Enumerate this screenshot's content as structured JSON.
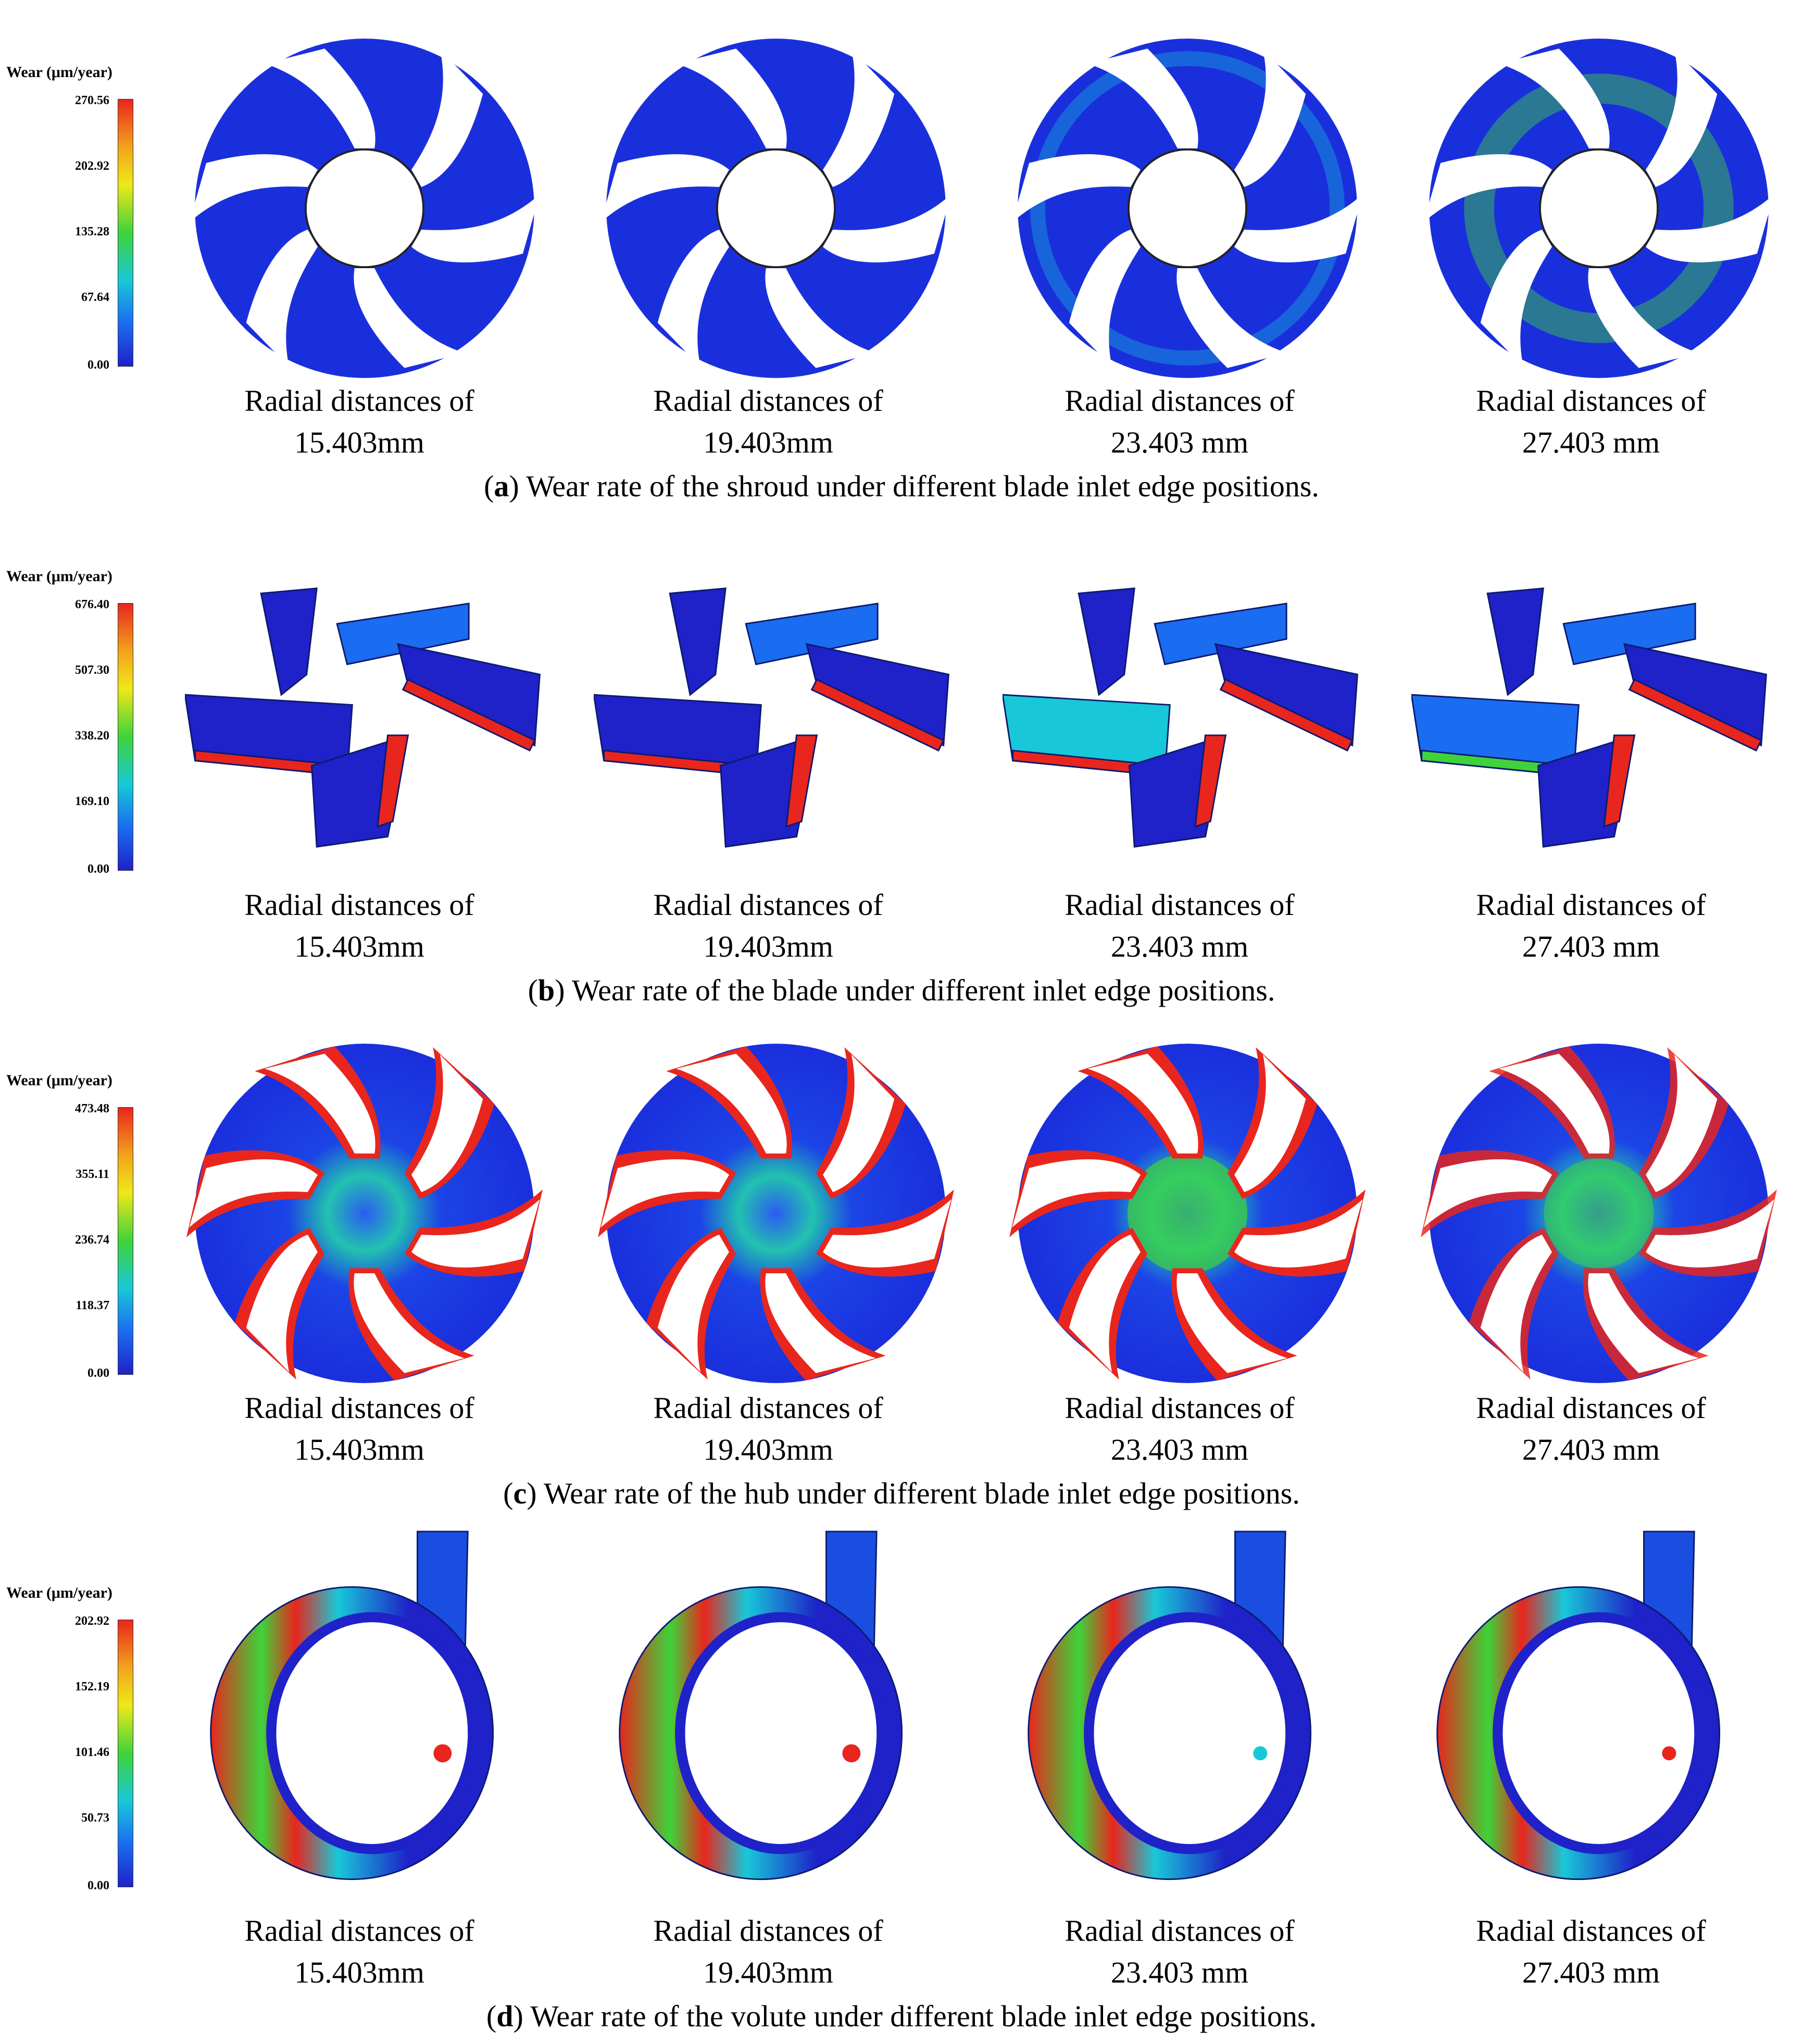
{
  "colorbar_colors": [
    "#e8261d",
    "#f2a41c",
    "#f0e81a",
    "#3ed33a",
    "#18c8d8",
    "#1a6cf0",
    "#1e22c8"
  ],
  "panels": [
    {
      "legend": {
        "title": "Wear (μm/year)",
        "ticks": [
          "270.56",
          "202.92",
          "135.28",
          "67.64",
          "0.00"
        ]
      },
      "labels": [
        {
          "line1": "Radial distances of",
          "line2": "15.403mm"
        },
        {
          "line1": "Radial distances of",
          "line2": "19.403mm"
        },
        {
          "line1": "Radial distances of",
          "line2": "23.403 mm"
        },
        {
          "line1": "Radial distances of",
          "line2": "27.403 mm"
        }
      ],
      "caption": {
        "letter": "a",
        "text": " Wear rate of the shroud under different blade inlet edge positions."
      }
    },
    {
      "legend": {
        "title": "Wear (μm/year)",
        "ticks": [
          "676.40",
          "507.30",
          "338.20",
          "169.10",
          "0.00"
        ]
      },
      "labels": [
        {
          "line1": "Radial distances of",
          "line2": "15.403mm"
        },
        {
          "line1": "Radial distances of",
          "line2": "19.403mm"
        },
        {
          "line1": "Radial distances of",
          "line2": "23.403 mm"
        },
        {
          "line1": "Radial distances of",
          "line2": "27.403 mm"
        }
      ],
      "caption": {
        "letter": "b",
        "text": " Wear rate of the blade under different inlet edge positions."
      }
    },
    {
      "legend": {
        "title": "Wear (μm/year)",
        "ticks": [
          "473.48",
          "355.11",
          "236.74",
          "118.37",
          "0.00"
        ]
      },
      "labels": [
        {
          "line1": "Radial distances of",
          "line2": "15.403mm"
        },
        {
          "line1": "Radial distances of",
          "line2": "19.403mm"
        },
        {
          "line1": "Radial distances of",
          "line2": "23.403 mm"
        },
        {
          "line1": "Radial distances of",
          "line2": "27.403 mm"
        }
      ],
      "caption": {
        "letter": "c",
        "text": " Wear rate of the hub under different blade inlet edge positions."
      }
    },
    {
      "legend": {
        "title": "Wear (μm/year)",
        "ticks": [
          "202.92",
          "152.19",
          "101.46",
          "50.73",
          "0.00"
        ]
      },
      "labels": [
        {
          "line1": "Radial distances of",
          "line2": "15.403mm"
        },
        {
          "line1": "Radial distances of",
          "line2": "19.403mm"
        },
        {
          "line1": "Radial distances of",
          "line2": "23.403 mm"
        },
        {
          "line1": "Radial distances of",
          "line2": "27.403 mm"
        }
      ],
      "caption": {
        "letter": "d",
        "text": " Wear rate of the volute under different blade inlet edge positions."
      }
    }
  ]
}
